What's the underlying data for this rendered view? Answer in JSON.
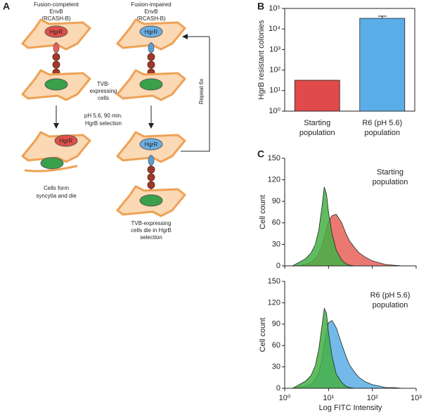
{
  "panels": [
    "A",
    "B",
    "C"
  ],
  "diagram": {
    "left_title": [
      "Fusion-competent",
      "EnvB",
      "(RCASH-B)"
    ],
    "right_title": [
      "Fusion-impaired",
      "EnvB",
      "(RCASH-B)"
    ],
    "receptor": "HgrR",
    "cells_label": [
      "TVB-",
      "expressing",
      "cells"
    ],
    "selection": [
      "pH 5.6, 90 min.",
      "HgrB selection"
    ],
    "repeat": "Repeat 6x",
    "left_outcome": [
      "Cells form",
      "syncytia and die"
    ],
    "right_outcome": [
      "TVB-expressing",
      "cells die in HgrB",
      "selection"
    ]
  },
  "chart_data": [
    {
      "type": "bar",
      "ylabel": "HgrB resistant colonies",
      "log_y": true,
      "categories": [
        [
          "Starting",
          "population"
        ],
        [
          "R6 (pH 5.6)",
          "population"
        ]
      ],
      "values": [
        32,
        33000
      ],
      "errors": [
        null,
        9000
      ],
      "colors": [
        "#e04a4a",
        "#5aaee8"
      ],
      "ylim": [
        1,
        100000
      ],
      "yticks": [
        {
          "value": 1,
          "label": "10⁰"
        },
        {
          "value": 10,
          "label": "10¹"
        },
        {
          "value": 100,
          "label": "10²"
        },
        {
          "value": 1000,
          "label": "10³"
        },
        {
          "value": 10000,
          "label": "10⁴"
        },
        {
          "value": 100000,
          "label": "10⁵"
        }
      ]
    },
    {
      "type": "area",
      "ylabel": "Cell count",
      "annotation": [
        "Starting",
        "population"
      ],
      "log_x": true,
      "xlim": [
        1,
        1000
      ],
      "ylim": [
        0,
        150
      ],
      "yticks": [
        0,
        30,
        60,
        90,
        120,
        150
      ],
      "x": [
        1.5,
        2,
        3,
        4,
        5,
        6,
        7,
        8,
        9,
        10,
        12,
        15,
        20,
        25,
        30,
        40,
        50,
        70,
        100,
        150,
        200,
        300,
        500
      ],
      "series": [
        {
          "color": "#e8605a",
          "values": [
            0,
            0,
            2,
            5,
            10,
            18,
            28,
            40,
            52,
            62,
            70,
            72,
            60,
            45,
            35,
            25,
            18,
            12,
            7,
            4,
            2,
            1,
            0
          ]
        },
        {
          "color": "#45b045",
          "values": [
            0,
            4,
            10,
            18,
            30,
            50,
            80,
            110,
            100,
            75,
            45,
            22,
            8,
            3,
            1,
            0,
            0,
            0,
            0,
            0,
            0,
            0,
            0
          ]
        }
      ]
    },
    {
      "type": "area",
      "ylabel": "Cell count",
      "xlabel": "Log FITC Intensity",
      "annotation": [
        "R6 (pH 5.6)",
        "population"
      ],
      "log_x": true,
      "xlim": [
        1,
        1000
      ],
      "ylim": [
        0,
        150
      ],
      "yticks": [
        0,
        30,
        60,
        90,
        120,
        150
      ],
      "xticks": [
        {
          "value": 1,
          "label": "10⁰"
        },
        {
          "value": 10,
          "label": "10¹"
        },
        {
          "value": 100,
          "label": "10²"
        },
        {
          "value": 1000,
          "label": "10³"
        }
      ],
      "x": [
        1.5,
        2,
        3,
        4,
        5,
        6,
        7,
        8,
        9,
        10,
        12,
        15,
        20,
        25,
        30,
        40,
        50,
        70,
        100,
        150,
        200,
        300,
        500
      ],
      "series": [
        {
          "color": "#5aaee8",
          "values": [
            0,
            1,
            3,
            6,
            12,
            22,
            40,
            62,
            80,
            92,
            95,
            85,
            62,
            45,
            33,
            22,
            15,
            9,
            5,
            3,
            1,
            1,
            0
          ]
        },
        {
          "color": "#45b045",
          "values": [
            0,
            4,
            10,
            18,
            32,
            55,
            85,
            112,
            105,
            78,
            45,
            20,
            8,
            3,
            1,
            0,
            0,
            0,
            0,
            0,
            0,
            0,
            0
          ]
        }
      ]
    }
  ]
}
